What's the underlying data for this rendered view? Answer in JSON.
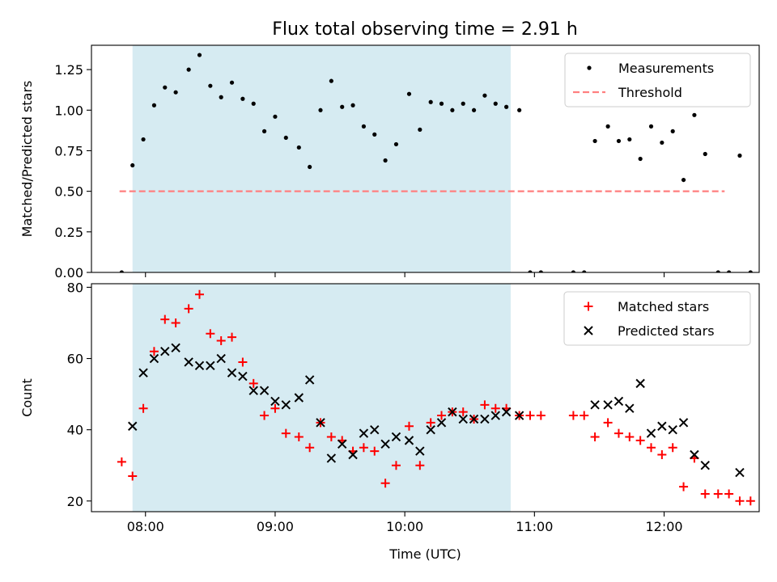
{
  "figure": {
    "title": "Flux total observing time = 2.91 h"
  },
  "chart_data": [
    {
      "type": "scatter",
      "title": "Flux total observing time = 2.91 h",
      "xlabel": "",
      "ylabel": "Matched/Predicted stars",
      "xlim": [
        "07:35",
        "12:44"
      ],
      "ylim": [
        0,
        1.4
      ],
      "yticks": [
        0.0,
        0.25,
        0.5,
        0.75,
        1.0,
        1.25
      ],
      "ytick_labels": [
        "0.00",
        "0.25",
        "0.50",
        "0.75",
        "1.00",
        "1.25"
      ],
      "legend_position": "top-right",
      "shaded_span": {
        "start": "07:54",
        "end": "10:49",
        "color": "#add8e6"
      },
      "threshold": {
        "name": "Threshold",
        "value": 0.5,
        "x_start": "07:48",
        "x_end": "12:28",
        "color": "#ff7f7f"
      },
      "series": [
        {
          "name": "Measurements",
          "marker": "dot",
          "color": "#000000",
          "points": [
            [
              "07:49",
              0.0
            ],
            [
              "07:54",
              0.66
            ],
            [
              "07:59",
              0.82
            ],
            [
              "08:04",
              1.03
            ],
            [
              "08:09",
              1.14
            ],
            [
              "08:14",
              1.11
            ],
            [
              "08:20",
              1.25
            ],
            [
              "08:25",
              1.34
            ],
            [
              "08:30",
              1.15
            ],
            [
              "08:35",
              1.08
            ],
            [
              "08:40",
              1.17
            ],
            [
              "08:45",
              1.07
            ],
            [
              "08:50",
              1.04
            ],
            [
              "08:55",
              0.87
            ],
            [
              "09:00",
              0.96
            ],
            [
              "09:05",
              0.83
            ],
            [
              "09:11",
              0.77
            ],
            [
              "09:16",
              0.65
            ],
            [
              "09:21",
              1.0
            ],
            [
              "09:26",
              1.18
            ],
            [
              "09:31",
              1.02
            ],
            [
              "09:36",
              1.03
            ],
            [
              "09:41",
              0.9
            ],
            [
              "09:46",
              0.85
            ],
            [
              "09:51",
              0.69
            ],
            [
              "09:56",
              0.79
            ],
            [
              "10:02",
              1.1
            ],
            [
              "10:07",
              0.88
            ],
            [
              "10:12",
              1.05
            ],
            [
              "10:17",
              1.04
            ],
            [
              "10:22",
              1.0
            ],
            [
              "10:27",
              1.04
            ],
            [
              "10:32",
              1.0
            ],
            [
              "10:37",
              1.09
            ],
            [
              "10:42",
              1.04
            ],
            [
              "10:47",
              1.02
            ],
            [
              "10:53",
              1.0
            ],
            [
              "10:58",
              0.0
            ],
            [
              "11:03",
              0.0
            ],
            [
              "11:18",
              0.0
            ],
            [
              "11:23",
              0.0
            ],
            [
              "11:28",
              0.81
            ],
            [
              "11:34",
              0.9
            ],
            [
              "11:39",
              0.81
            ],
            [
              "11:44",
              0.82
            ],
            [
              "11:49",
              0.7
            ],
            [
              "11:54",
              0.9
            ],
            [
              "11:59",
              0.8
            ],
            [
              "12:04",
              0.87
            ],
            [
              "12:09",
              0.57
            ],
            [
              "12:14",
              0.97
            ],
            [
              "12:19",
              0.73
            ],
            [
              "12:25",
              0.0
            ],
            [
              "12:30",
              0.0
            ],
            [
              "12:35",
              0.72
            ],
            [
              "12:40",
              0.0
            ]
          ]
        }
      ]
    },
    {
      "type": "scatter",
      "title": "",
      "xlabel": "Time (UTC)",
      "ylabel": "Count",
      "xlim": [
        "07:35",
        "12:44"
      ],
      "ylim": [
        17,
        81
      ],
      "yticks": [
        20,
        40,
        60,
        80
      ],
      "ytick_labels": [
        "20",
        "40",
        "60",
        "80"
      ],
      "xticks": [
        "08:00",
        "09:00",
        "10:00",
        "11:00",
        "12:00"
      ],
      "xtick_labels": [
        "08:00",
        "09:00",
        "10:00",
        "11:00",
        "12:00"
      ],
      "legend_position": "top-right",
      "shaded_span": {
        "start": "07:54",
        "end": "10:49",
        "color": "#add8e6"
      },
      "series": [
        {
          "name": "Matched stars",
          "marker": "plus",
          "color": "#ff0000",
          "points": [
            [
              "07:49",
              31
            ],
            [
              "07:54",
              27
            ],
            [
              "07:59",
              46
            ],
            [
              "08:04",
              62
            ],
            [
              "08:09",
              71
            ],
            [
              "08:14",
              70
            ],
            [
              "08:20",
              74
            ],
            [
              "08:25",
              78
            ],
            [
              "08:30",
              67
            ],
            [
              "08:35",
              65
            ],
            [
              "08:40",
              66
            ],
            [
              "08:45",
              59
            ],
            [
              "08:50",
              53
            ],
            [
              "08:55",
              44
            ],
            [
              "09:00",
              46
            ],
            [
              "09:05",
              39
            ],
            [
              "09:11",
              38
            ],
            [
              "09:16",
              35
            ],
            [
              "09:21",
              42
            ],
            [
              "09:26",
              38
            ],
            [
              "09:31",
              37
            ],
            [
              "09:36",
              34
            ],
            [
              "09:41",
              35
            ],
            [
              "09:46",
              34
            ],
            [
              "09:51",
              25
            ],
            [
              "09:56",
              30
            ],
            [
              "10:02",
              41
            ],
            [
              "10:07",
              30
            ],
            [
              "10:12",
              42
            ],
            [
              "10:17",
              44
            ],
            [
              "10:22",
              45
            ],
            [
              "10:27",
              45
            ],
            [
              "10:32",
              43
            ],
            [
              "10:37",
              47
            ],
            [
              "10:42",
              46
            ],
            [
              "10:47",
              46
            ],
            [
              "10:53",
              44
            ],
            [
              "10:58",
              44
            ],
            [
              "11:03",
              44
            ],
            [
              "11:18",
              44
            ],
            [
              "11:23",
              44
            ],
            [
              "11:28",
              38
            ],
            [
              "11:34",
              42
            ],
            [
              "11:39",
              39
            ],
            [
              "11:44",
              38
            ],
            [
              "11:49",
              37
            ],
            [
              "11:54",
              35
            ],
            [
              "11:59",
              33
            ],
            [
              "12:04",
              35
            ],
            [
              "12:09",
              24
            ],
            [
              "12:14",
              32
            ],
            [
              "12:19",
              22
            ],
            [
              "12:25",
              22
            ],
            [
              "12:30",
              22
            ],
            [
              "12:35",
              20
            ],
            [
              "12:40",
              20
            ]
          ]
        },
        {
          "name": "Predicted stars",
          "marker": "x",
          "color": "#000000",
          "points": [
            [
              "07:54",
              41
            ],
            [
              "07:59",
              56
            ],
            [
              "08:04",
              60
            ],
            [
              "08:09",
              62
            ],
            [
              "08:14",
              63
            ],
            [
              "08:20",
              59
            ],
            [
              "08:25",
              58
            ],
            [
              "08:30",
              58
            ],
            [
              "08:35",
              60
            ],
            [
              "08:40",
              56
            ],
            [
              "08:45",
              55
            ],
            [
              "08:50",
              51
            ],
            [
              "08:55",
              51
            ],
            [
              "09:00",
              48
            ],
            [
              "09:05",
              47
            ],
            [
              "09:11",
              49
            ],
            [
              "09:16",
              54
            ],
            [
              "09:21",
              42
            ],
            [
              "09:26",
              32
            ],
            [
              "09:31",
              36
            ],
            [
              "09:36",
              33
            ],
            [
              "09:41",
              39
            ],
            [
              "09:46",
              40
            ],
            [
              "09:51",
              36
            ],
            [
              "09:56",
              38
            ],
            [
              "10:02",
              37
            ],
            [
              "10:07",
              34
            ],
            [
              "10:12",
              40
            ],
            [
              "10:17",
              42
            ],
            [
              "10:22",
              45
            ],
            [
              "10:27",
              43
            ],
            [
              "10:32",
              43
            ],
            [
              "10:37",
              43
            ],
            [
              "10:42",
              44
            ],
            [
              "10:47",
              45
            ],
            [
              "10:53",
              44
            ],
            [
              "11:28",
              47
            ],
            [
              "11:34",
              47
            ],
            [
              "11:39",
              48
            ],
            [
              "11:44",
              46
            ],
            [
              "11:49",
              53
            ],
            [
              "11:54",
              39
            ],
            [
              "11:59",
              41
            ],
            [
              "12:04",
              40
            ],
            [
              "12:09",
              42
            ],
            [
              "12:14",
              33
            ],
            [
              "12:19",
              30
            ],
            [
              "12:35",
              28
            ]
          ]
        }
      ]
    }
  ]
}
